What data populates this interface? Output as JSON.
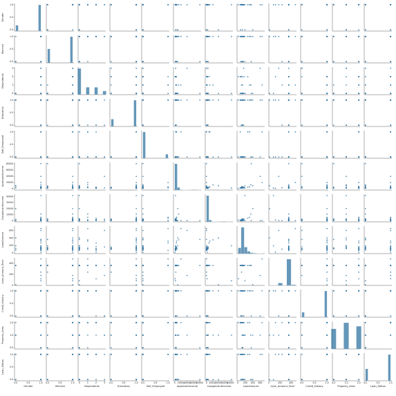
{
  "chart_data": {
    "type": "pairplot",
    "color": "#3274a1",
    "variables": [
      {
        "name": "Gender",
        "lim": [
          -0.05,
          1.05
        ],
        "ticks": [
          {
            "value": 0,
            "label": "0.0"
          },
          {
            "value": 0.5,
            "label": "0.5"
          },
          {
            "value": 1,
            "label": "1.0"
          }
        ],
        "bins": [
          0,
          0.1,
          0.9,
          1
        ],
        "counts": [
          112,
          0,
          502
        ]
      },
      {
        "name": "Married",
        "lim": [
          -0.05,
          1.05
        ],
        "ticks": [
          {
            "value": 0,
            "label": "0.0"
          },
          {
            "value": 0.5,
            "label": "0.5"
          },
          {
            "value": 1,
            "label": "1.0"
          }
        ],
        "bins": [
          0,
          0.1,
          0.9,
          1
        ],
        "counts": [
          213,
          0,
          401
        ]
      },
      {
        "name": "Dependents",
        "lim": [
          -0.15,
          3.15
        ],
        "ticks": [
          0,
          1,
          2,
          3
        ],
        "bins": [
          -0.2,
          0.2,
          0.8,
          1.2,
          1.8,
          2.2,
          2.8,
          3.2
        ],
        "counts": [
          360,
          0,
          102,
          0,
          101,
          0,
          51
        ]
      },
      {
        "name": "Education",
        "lim": [
          -0.05,
          1.05
        ],
        "ticks": [
          {
            "value": 0,
            "label": "0.0"
          },
          {
            "value": 0.5,
            "label": "0.5"
          },
          {
            "value": 1,
            "label": "1.0"
          }
        ],
        "bins": [
          0,
          0.1,
          0.9,
          1
        ],
        "counts": [
          134,
          0,
          480
        ]
      },
      {
        "name": "Self_Employed",
        "lim": [
          -0.05,
          1.05
        ],
        "ticks": [
          {
            "value": 0,
            "label": "0.0"
          },
          {
            "value": 0.5,
            "label": "0.5"
          },
          {
            "value": 1,
            "label": "1.0"
          }
        ],
        "bins": [
          0,
          0.1,
          0.9,
          1
        ],
        "counts": [
          532,
          0,
          82
        ]
      },
      {
        "name": "ApplicantIncome",
        "lim": [
          -4000,
          85000
        ],
        "ticks": [
          0,
          20000,
          40000,
          60000,
          80000
        ],
        "bins": [
          150,
          8235,
          16320,
          24405,
          32490,
          40575,
          48660,
          56745,
          64830,
          72915,
          81000
        ],
        "counts": [
          540,
          55,
          8,
          5,
          2,
          1,
          1,
          0,
          0,
          1
        ]
      },
      {
        "name": "CoapplicantIncome",
        "lim": [
          -2000,
          44000
        ],
        "ticks": [
          0,
          10000,
          20000,
          30000,
          40000
        ],
        "bins": [
          0,
          4167,
          8333,
          12500,
          16667,
          20833,
          25000,
          29167,
          33333,
          37500,
          41667
        ],
        "counts": [
          560,
          40,
          7,
          3,
          1,
          1,
          0,
          0,
          1,
          1
        ]
      },
      {
        "name": "LoanAmount",
        "lim": [
          -20,
          720
        ],
        "ticks": [
          0,
          200,
          400,
          600
        ],
        "bins": [
          9,
          90,
          171,
          252,
          333,
          414,
          495,
          576,
          657
        ],
        "counts": [
          80,
          360,
          90,
          30,
          12,
          6,
          4,
          3
        ]
      },
      {
        "name": "Loan_Amount_Term",
        "lim": [
          0,
          500
        ],
        "ticks": [
          0,
          200,
          400
        ],
        "bins": [
          12,
          90,
          168,
          246,
          324,
          402,
          480
        ],
        "counts": [
          4,
          3,
          48,
          5,
          520,
          14
        ]
      },
      {
        "name": "Credit_History",
        "lim": [
          -0.05,
          1.05
        ],
        "ticks": [
          {
            "value": 0,
            "label": "0.0"
          },
          {
            "value": 0.5,
            "label": "0.5"
          },
          {
            "value": 1,
            "label": "1.0"
          }
        ],
        "bins": [
          0,
          0.1,
          0.9,
          1
        ],
        "counts": [
          89,
          0,
          475
        ]
      },
      {
        "name": "Property_Area",
        "lim": [
          -0.1,
          2.1
        ],
        "ticks": [
          {
            "value": 0,
            "label": "0.0"
          },
          {
            "value": 1,
            "label": "1.0"
          },
          {
            "value": 2,
            "label": "2.0"
          }
        ],
        "bins": [
          -0.2,
          0.2,
          0.8,
          1.2,
          1.8,
          2.2
        ],
        "counts": [
          179,
          0,
          233,
          0,
          202
        ]
      },
      {
        "name": "Loan_Status",
        "lim": [
          -0.05,
          1.05
        ],
        "ticks": [
          {
            "value": 0,
            "label": "0.0"
          },
          {
            "value": 0.5,
            "label": "0.5"
          },
          {
            "value": 1,
            "label": "1.0"
          }
        ],
        "bins": [
          0,
          0.1,
          0.9,
          1
        ],
        "counts": [
          192,
          0,
          422
        ]
      }
    ],
    "rows": [
      [
        1,
        0,
        0,
        1,
        0,
        5849,
        0,
        146,
        360,
        1,
        2,
        1
      ],
      [
        1,
        1,
        1,
        1,
        0,
        4583,
        1508,
        128,
        360,
        1,
        0,
        0
      ],
      [
        1,
        1,
        0,
        1,
        1,
        3000,
        0,
        66,
        360,
        1,
        2,
        1
      ],
      [
        1,
        1,
        0,
        0,
        0,
        2583,
        2358,
        120,
        360,
        1,
        2,
        1
      ],
      [
        1,
        0,
        0,
        1,
        0,
        6000,
        0,
        141,
        360,
        1,
        2,
        1
      ],
      [
        1,
        1,
        2,
        1,
        1,
        5417,
        4196,
        267,
        360,
        1,
        2,
        1
      ],
      [
        1,
        1,
        0,
        0,
        0,
        2333,
        1516,
        95,
        360,
        1,
        2,
        1
      ],
      [
        1,
        1,
        3,
        0,
        0,
        3036,
        2504,
        158,
        360,
        0,
        1,
        0
      ],
      [
        1,
        1,
        2,
        1,
        0,
        4006,
        1526,
        168,
        360,
        1,
        2,
        1
      ],
      [
        1,
        1,
        1,
        1,
        0,
        12841,
        10968,
        349,
        360,
        1,
        1,
        0
      ],
      [
        1,
        1,
        2,
        1,
        0,
        3200,
        700,
        70,
        360,
        1,
        2,
        1
      ],
      [
        0,
        0,
        0,
        1,
        0,
        3510,
        0,
        76,
        360,
        0,
        2,
        0
      ],
      [
        1,
        1,
        2,
        1,
        0,
        2400,
        0,
        75,
        360,
        1,
        2,
        1
      ],
      [
        1,
        0,
        0,
        1,
        0,
        1853,
        2840,
        114,
        360,
        1,
        0,
        0
      ],
      [
        1,
        1,
        2,
        1,
        0,
        1299,
        1086,
        17,
        120,
        1,
        2,
        1
      ],
      [
        1,
        0,
        0,
        1,
        0,
        4950,
        0,
        125,
        360,
        1,
        2,
        1
      ],
      [
        1,
        0,
        1,
        0,
        0,
        3596,
        0,
        100,
        240,
        1,
        2,
        1
      ],
      [
        1,
        1,
        0,
        0,
        0,
        4887,
        0,
        133,
        360,
        1,
        0,
        0
      ],
      [
        1,
        1,
        0,
        1,
        0,
        7660,
        0,
        104,
        360,
        0,
        2,
        0
      ],
      [
        1,
        1,
        1,
        1,
        1,
        5955,
        5625,
        315,
        360,
        1,
        2,
        1
      ],
      [
        1,
        1,
        2,
        0,
        0,
        2600,
        1911,
        116,
        360,
        0,
        1,
        0
      ],
      [
        1,
        1,
        0,
        1,
        0,
        3365,
        1917,
        112,
        360,
        0,
        0,
        0
      ],
      [
        1,
        1,
        0,
        1,
        0,
        3717,
        2925,
        151,
        360,
        1,
        1,
        0
      ],
      [
        0,
        0,
        0,
        1,
        0,
        9560,
        0,
        191,
        360,
        1,
        1,
        1
      ],
      [
        1,
        1,
        0,
        1,
        0,
        2799,
        2253,
        122,
        360,
        1,
        1,
        1
      ],
      [
        1,
        1,
        2,
        0,
        0,
        4226,
        1040,
        110,
        360,
        1,
        2,
        1
      ],
      [
        1,
        0,
        0,
        1,
        0,
        81000,
        0,
        360,
        360,
        0,
        0,
        0
      ],
      [
        0,
        0,
        0,
        1,
        0,
        3750,
        2083,
        120,
        360,
        1,
        1,
        1
      ],
      [
        1,
        1,
        3,
        1,
        0,
        39999,
        0,
        600,
        180,
        0,
        1,
        1
      ],
      [
        1,
        1,
        0,
        1,
        0,
        2500,
        41667,
        190,
        84,
        1,
        1,
        0
      ],
      [
        1,
        1,
        1,
        1,
        1,
        20166,
        0,
        650,
        480,
        1,
        2,
        1
      ],
      [
        0,
        1,
        0,
        1,
        0,
        10000,
        20000,
        400,
        12,
        1,
        1,
        0
      ]
    ]
  }
}
